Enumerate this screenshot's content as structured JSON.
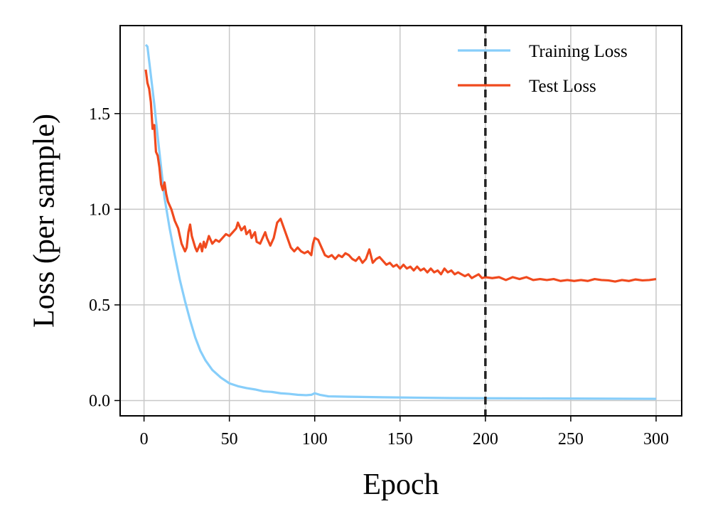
{
  "chart_data": {
    "type": "line",
    "title": "",
    "xlabel": "Epoch",
    "ylabel": "Loss (per sample)",
    "xlim": [
      -14,
      315
    ],
    "ylim": [
      -0.08,
      1.96
    ],
    "xticks": [
      0,
      50,
      100,
      150,
      200,
      250,
      300
    ],
    "xtick_labels": [
      "0",
      "50",
      "100",
      "150",
      "200",
      "250",
      "300"
    ],
    "yticks": [
      0.0,
      0.5,
      1.0,
      1.5
    ],
    "ytick_labels": [
      "0.0",
      "0.5",
      "1.0",
      "1.5"
    ],
    "grid": true,
    "legend_position": "top-right",
    "vline": {
      "x": 200,
      "style": "dashed",
      "color": "#222222"
    },
    "series": [
      {
        "name": "Training Loss",
        "color": "#87CEFA",
        "points": [
          [
            1,
            1.86
          ],
          [
            2,
            1.85
          ],
          [
            4,
            1.7
          ],
          [
            6,
            1.55
          ],
          [
            8,
            1.38
          ],
          [
            10,
            1.22
          ],
          [
            12,
            1.06
          ],
          [
            15,
            0.9
          ],
          [
            18,
            0.76
          ],
          [
            21,
            0.63
          ],
          [
            24,
            0.52
          ],
          [
            27,
            0.42
          ],
          [
            30,
            0.33
          ],
          [
            33,
            0.26
          ],
          [
            36,
            0.21
          ],
          [
            40,
            0.16
          ],
          [
            45,
            0.12
          ],
          [
            50,
            0.09
          ],
          [
            55,
            0.075
          ],
          [
            60,
            0.065
          ],
          [
            65,
            0.058
          ],
          [
            70,
            0.048
          ],
          [
            75,
            0.045
          ],
          [
            80,
            0.038
          ],
          [
            85,
            0.035
          ],
          [
            90,
            0.03
          ],
          [
            95,
            0.028
          ],
          [
            98,
            0.03
          ],
          [
            100,
            0.038
          ],
          [
            103,
            0.03
          ],
          [
            108,
            0.022
          ],
          [
            120,
            0.02
          ],
          [
            140,
            0.017
          ],
          [
            160,
            0.015
          ],
          [
            180,
            0.013
          ],
          [
            200,
            0.012
          ],
          [
            230,
            0.011
          ],
          [
            260,
            0.01
          ],
          [
            300,
            0.009
          ]
        ]
      },
      {
        "name": "Test Loss",
        "color": "#F04A1E",
        "points": [
          [
            1,
            1.73
          ],
          [
            2,
            1.66
          ],
          [
            3,
            1.63
          ],
          [
            4,
            1.56
          ],
          [
            5,
            1.42
          ],
          [
            6,
            1.44
          ],
          [
            7,
            1.3
          ],
          [
            8,
            1.28
          ],
          [
            9,
            1.22
          ],
          [
            10,
            1.13
          ],
          [
            11,
            1.1
          ],
          [
            12,
            1.14
          ],
          [
            13,
            1.08
          ],
          [
            14,
            1.04
          ],
          [
            15,
            1.02
          ],
          [
            16,
            1.0
          ],
          [
            18,
            0.94
          ],
          [
            20,
            0.9
          ],
          [
            22,
            0.82
          ],
          [
            24,
            0.78
          ],
          [
            25,
            0.8
          ],
          [
            26,
            0.88
          ],
          [
            27,
            0.92
          ],
          [
            28,
            0.86
          ],
          [
            30,
            0.8
          ],
          [
            31,
            0.78
          ],
          [
            33,
            0.82
          ],
          [
            34,
            0.78
          ],
          [
            35,
            0.83
          ],
          [
            36,
            0.8
          ],
          [
            38,
            0.86
          ],
          [
            40,
            0.82
          ],
          [
            42,
            0.84
          ],
          [
            44,
            0.83
          ],
          [
            46,
            0.85
          ],
          [
            48,
            0.87
          ],
          [
            50,
            0.86
          ],
          [
            52,
            0.88
          ],
          [
            54,
            0.9
          ],
          [
            55,
            0.93
          ],
          [
            57,
            0.89
          ],
          [
            59,
            0.91
          ],
          [
            60,
            0.87
          ],
          [
            62,
            0.89
          ],
          [
            63,
            0.85
          ],
          [
            65,
            0.88
          ],
          [
            66,
            0.83
          ],
          [
            68,
            0.82
          ],
          [
            70,
            0.86
          ],
          [
            71,
            0.88
          ],
          [
            72,
            0.85
          ],
          [
            74,
            0.81
          ],
          [
            76,
            0.85
          ],
          [
            78,
            0.93
          ],
          [
            80,
            0.95
          ],
          [
            82,
            0.9
          ],
          [
            84,
            0.85
          ],
          [
            86,
            0.8
          ],
          [
            88,
            0.78
          ],
          [
            90,
            0.8
          ],
          [
            92,
            0.78
          ],
          [
            94,
            0.77
          ],
          [
            96,
            0.78
          ],
          [
            98,
            0.76
          ],
          [
            99,
            0.82
          ],
          [
            100,
            0.85
          ],
          [
            102,
            0.84
          ],
          [
            104,
            0.8
          ],
          [
            106,
            0.76
          ],
          [
            108,
            0.75
          ],
          [
            110,
            0.76
          ],
          [
            112,
            0.74
          ],
          [
            114,
            0.76
          ],
          [
            116,
            0.75
          ],
          [
            118,
            0.77
          ],
          [
            120,
            0.76
          ],
          [
            122,
            0.74
          ],
          [
            124,
            0.73
          ],
          [
            126,
            0.75
          ],
          [
            128,
            0.72
          ],
          [
            130,
            0.74
          ],
          [
            132,
            0.79
          ],
          [
            134,
            0.72
          ],
          [
            136,
            0.74
          ],
          [
            138,
            0.75
          ],
          [
            140,
            0.73
          ],
          [
            142,
            0.71
          ],
          [
            144,
            0.72
          ],
          [
            146,
            0.7
          ],
          [
            148,
            0.71
          ],
          [
            150,
            0.69
          ],
          [
            152,
            0.71
          ],
          [
            154,
            0.69
          ],
          [
            156,
            0.7
          ],
          [
            158,
            0.68
          ],
          [
            160,
            0.7
          ],
          [
            162,
            0.68
          ],
          [
            164,
            0.69
          ],
          [
            166,
            0.67
          ],
          [
            168,
            0.69
          ],
          [
            170,
            0.67
          ],
          [
            172,
            0.68
          ],
          [
            174,
            0.66
          ],
          [
            176,
            0.69
          ],
          [
            178,
            0.67
          ],
          [
            180,
            0.68
          ],
          [
            182,
            0.66
          ],
          [
            184,
            0.67
          ],
          [
            186,
            0.66
          ],
          [
            188,
            0.65
          ],
          [
            190,
            0.66
          ],
          [
            192,
            0.64
          ],
          [
            194,
            0.65
          ],
          [
            196,
            0.66
          ],
          [
            198,
            0.64
          ],
          [
            200,
            0.645
          ],
          [
            204,
            0.64
          ],
          [
            208,
            0.645
          ],
          [
            212,
            0.63
          ],
          [
            216,
            0.645
          ],
          [
            220,
            0.635
          ],
          [
            224,
            0.645
          ],
          [
            228,
            0.63
          ],
          [
            232,
            0.635
          ],
          [
            236,
            0.63
          ],
          [
            240,
            0.635
          ],
          [
            244,
            0.625
          ],
          [
            248,
            0.63
          ],
          [
            252,
            0.625
          ],
          [
            256,
            0.63
          ],
          [
            260,
            0.625
          ],
          [
            264,
            0.635
          ],
          [
            268,
            0.63
          ],
          [
            272,
            0.628
          ],
          [
            276,
            0.622
          ],
          [
            280,
            0.63
          ],
          [
            284,
            0.625
          ],
          [
            288,
            0.633
          ],
          [
            292,
            0.628
          ],
          [
            296,
            0.63
          ],
          [
            300,
            0.635
          ]
        ]
      }
    ]
  }
}
